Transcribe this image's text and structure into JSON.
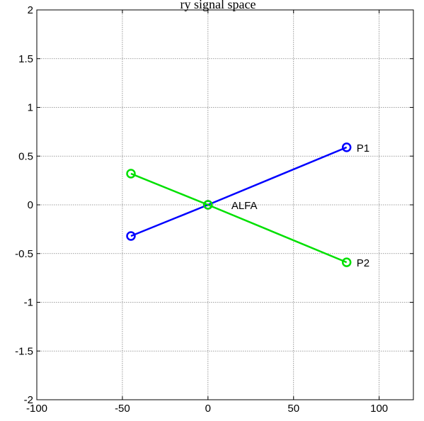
{
  "chart_data": {
    "type": "line",
    "title": "ry signal space",
    "xlim": [
      -100,
      120
    ],
    "ylim": [
      -2,
      2
    ],
    "xticks": [
      -100,
      -50,
      0,
      50,
      100
    ],
    "yticks": [
      -2,
      -1.5,
      -1,
      -0.5,
      0,
      0.5,
      1,
      1.5,
      2
    ],
    "xtick_labels": [
      "-100",
      "-50",
      "0",
      "50",
      "100"
    ],
    "ytick_labels": [
      "-2",
      "-1.5",
      "-1",
      "-0.5",
      "0",
      "0.5",
      "1",
      "1.5",
      "2"
    ],
    "grid": true,
    "series": [
      {
        "color": "#0000FF",
        "marker": "circle",
        "points": [
          {
            "x": -45,
            "y": -0.32,
            "label": ""
          },
          {
            "x": 0,
            "y": 0,
            "label": ""
          },
          {
            "x": 81,
            "y": 0.59,
            "label": "P1"
          }
        ]
      },
      {
        "color": "#00E000",
        "marker": "circle",
        "points": [
          {
            "x": -45,
            "y": 0.32,
            "label": ""
          },
          {
            "x": 0,
            "y": 0,
            "label": "ALFA"
          },
          {
            "x": 81,
            "y": -0.59,
            "label": "P2"
          }
        ]
      }
    ]
  }
}
